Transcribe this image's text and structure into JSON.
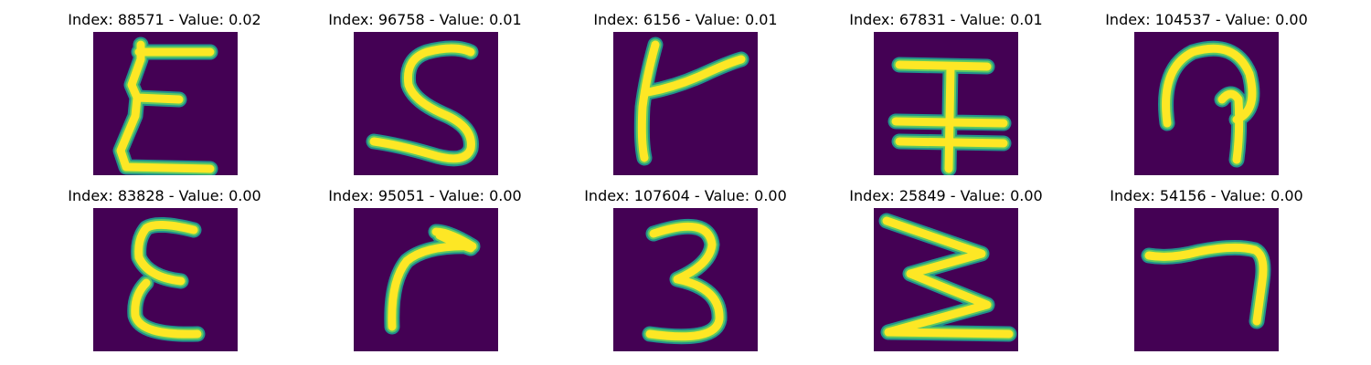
{
  "colors": {
    "background": "#440154",
    "stroke_edge": "#21918c",
    "stroke_mid": "#5ec962",
    "stroke_core": "#fde725"
  },
  "panels": [
    {
      "title": "Index: 88571 - Value: 0.02"
    },
    {
      "title": "Index: 96758 - Value: 0.01"
    },
    {
      "title": "Index: 6156 - Value: 0.01"
    },
    {
      "title": "Index: 67831 - Value: 0.01"
    },
    {
      "title": "Index: 104537 - Value: 0.00"
    },
    {
      "title": "Index: 83828 - Value: 0.00"
    },
    {
      "title": "Index: 95051 - Value: 0.00"
    },
    {
      "title": "Index: 107604 - Value: 0.00"
    },
    {
      "title": "Index: 25849 - Value: 0.00"
    },
    {
      "title": "Index: 54156 - Value: 0.00"
    }
  ]
}
